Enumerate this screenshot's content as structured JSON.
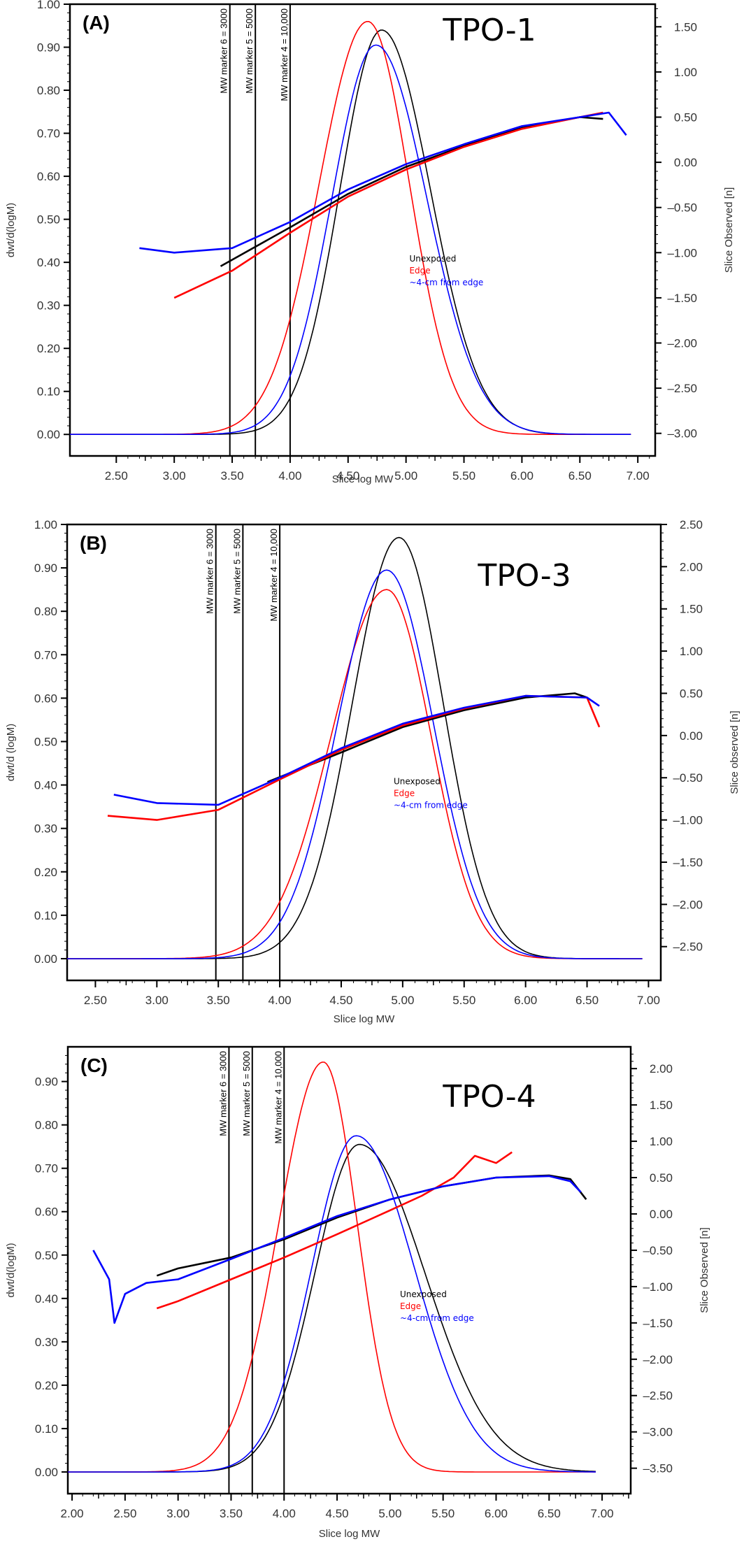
{
  "chart_data": [
    {
      "type": "line",
      "panel_label": "(A)",
      "title": "TPO-1",
      "xlabel": "Slice log MW",
      "ylabel": "dwt/d(logM)",
      "y2label": "Slice Observed [n]",
      "xlim": [
        2.1,
        7.15
      ],
      "ylim": [
        -0.05,
        1.0
      ],
      "y2lim": [
        -3.25,
        1.75
      ],
      "xticks": [
        "2.50",
        "3.00",
        "3.50",
        "4.00",
        "4.50",
        "5.00",
        "5.50",
        "6.00",
        "6.50",
        "7.00"
      ],
      "yticks": [
        "0.00",
        "0.10",
        "0.20",
        "0.30",
        "0.40",
        "0.50",
        "0.60",
        "0.70",
        "0.80",
        "0.90",
        "1.00"
      ],
      "y2ticks": [
        "-3.00",
        "-2.50",
        "-2.00",
        "-1.50",
        "-1.00",
        "-0.50",
        "0.00",
        "0.50",
        "1.00",
        "1.50"
      ],
      "markers": [
        {
          "x": 3.48,
          "label": "MW marker 6 = 3000"
        },
        {
          "x": 3.7,
          "label": "MW marker 5 = 5000"
        },
        {
          "x": 4.0,
          "label": "MW marker 4 = 10,000"
        }
      ],
      "legend": {
        "position": "center-right",
        "entries": [
          "Unexposed",
          "Edge",
          "~4-cm from edge"
        ]
      },
      "series": [
        {
          "name": "Unexposed",
          "color": "#000000",
          "peak_x": 4.79,
          "peak_y": 0.94,
          "sigma_left": 0.36,
          "sigma_right": 0.42,
          "slice_line": [
            [
              3.4,
              -1.15
            ],
            [
              4.0,
              -0.72
            ],
            [
              4.5,
              -0.35
            ],
            [
              5.0,
              -0.05
            ],
            [
              5.5,
              0.18
            ],
            [
              6.0,
              0.38
            ],
            [
              6.5,
              0.5
            ],
            [
              6.7,
              0.48
            ]
          ]
        },
        {
          "name": "Edge",
          "color": "#ff0000",
          "peak_x": 4.67,
          "peak_y": 0.96,
          "sigma_left": 0.42,
          "sigma_right": 0.36,
          "slice_line": [
            [
              3.0,
              -1.5
            ],
            [
              3.5,
              -1.2
            ],
            [
              4.0,
              -0.78
            ],
            [
              4.5,
              -0.38
            ],
            [
              5.0,
              -0.08
            ],
            [
              5.5,
              0.17
            ],
            [
              6.0,
              0.37
            ],
            [
              6.5,
              0.5
            ],
            [
              6.7,
              0.55
            ]
          ]
        },
        {
          "name": "~4-cm from edge",
          "color": "#0000ff",
          "peak_x": 4.74,
          "peak_y": 0.905,
          "sigma_left": 0.38,
          "sigma_right": 0.44,
          "slice_line": [
            [
              2.7,
              -0.95
            ],
            [
              3.0,
              -1.0
            ],
            [
              3.5,
              -0.95
            ],
            [
              4.0,
              -0.66
            ],
            [
              4.5,
              -0.3
            ],
            [
              5.0,
              -0.02
            ],
            [
              5.5,
              0.2
            ],
            [
              6.0,
              0.4
            ],
            [
              6.5,
              0.5
            ],
            [
              6.75,
              0.55
            ],
            [
              6.9,
              0.3
            ]
          ]
        }
      ]
    },
    {
      "type": "line",
      "panel_label": "(B)",
      "title": "TPO-3",
      "xlabel": "Slice log MW",
      "ylabel": "dwt/d (logM)",
      "y2label": "Slice observed [n]",
      "xlim": [
        2.27,
        7.1
      ],
      "ylim": [
        -0.05,
        1.0
      ],
      "y2lim": [
        -2.9,
        2.5
      ],
      "xticks": [
        "2.50",
        "3.00",
        "3.50",
        "4.00",
        "4.50",
        "5.00",
        "5.50",
        "6.00",
        "6.50",
        "7.00"
      ],
      "yticks": [
        "0.00",
        "0.10",
        "0.20",
        "0.30",
        "0.40",
        "0.50",
        "0.60",
        "0.70",
        "0.80",
        "0.90",
        "1.00"
      ],
      "y2ticks": [
        "-2.50",
        "-2.00",
        "-1.50",
        "-1.00",
        "-0.50",
        "0.00",
        "0.50",
        "1.00",
        "1.50",
        "2.00",
        "2.50"
      ],
      "markers": [
        {
          "x": 3.48,
          "label": "MW marker 6 = 3000"
        },
        {
          "x": 3.7,
          "label": "MW marker 5 = 5000"
        },
        {
          "x": 4.0,
          "label": "MW marker 4 = 10,000"
        }
      ],
      "legend": {
        "position": "center-right",
        "entries": [
          "Unexposed",
          "Edge",
          "~4-cm from edge"
        ]
      },
      "series": [
        {
          "name": "Unexposed",
          "color": "#000000",
          "peak_x": 4.97,
          "peak_y": 0.97,
          "sigma_left": 0.38,
          "sigma_right": 0.36,
          "slice_line": [
            [
              3.9,
              -0.55
            ],
            [
              4.5,
              -0.2
            ],
            [
              5.0,
              0.1
            ],
            [
              5.5,
              0.3
            ],
            [
              6.0,
              0.45
            ],
            [
              6.4,
              0.5
            ],
            [
              6.5,
              0.45
            ]
          ]
        },
        {
          "name": "Edge",
          "color": "#ff0000",
          "peak_x": 4.87,
          "peak_y": 0.85,
          "sigma_left": 0.45,
          "sigma_right": 0.36,
          "slice_line": [
            [
              2.6,
              -0.95
            ],
            [
              3.0,
              -1.0
            ],
            [
              3.5,
              -0.88
            ],
            [
              4.0,
              -0.52
            ],
            [
              4.5,
              -0.17
            ],
            [
              5.0,
              0.12
            ],
            [
              5.5,
              0.32
            ],
            [
              6.0,
              0.47
            ],
            [
              6.5,
              0.45
            ],
            [
              6.6,
              0.1
            ]
          ]
        },
        {
          "name": "~4-cm from edge",
          "color": "#0000ff",
          "peak_x": 4.87,
          "peak_y": 0.895,
          "sigma_left": 0.4,
          "sigma_right": 0.38,
          "slice_line": [
            [
              2.65,
              -0.7
            ],
            [
              3.0,
              -0.8
            ],
            [
              3.5,
              -0.82
            ],
            [
              4.0,
              -0.5
            ],
            [
              4.5,
              -0.15
            ],
            [
              5.0,
              0.14
            ],
            [
              5.5,
              0.33
            ],
            [
              6.0,
              0.47
            ],
            [
              6.5,
              0.45
            ],
            [
              6.6,
              0.35
            ]
          ]
        }
      ]
    },
    {
      "type": "line",
      "panel_label": "(C)",
      "title": "TPO-4",
      "xlabel": "Slice log MW",
      "ylabel": "dwt/d(logM)",
      "y2label": "Slice Observed [n]",
      "xlim": [
        1.96,
        7.27
      ],
      "ylim": [
        -0.05,
        0.98
      ],
      "y2lim": [
        -3.85,
        2.3
      ],
      "xticks": [
        "2.00",
        "2.50",
        "3.00",
        "3.50",
        "4.00",
        "4.50",
        "5.00",
        "5.50",
        "6.00",
        "6.50",
        "7.00"
      ],
      "yticks": [
        "0.00",
        "0.10",
        "0.20",
        "0.30",
        "0.40",
        "0.50",
        "0.60",
        "0.70",
        "0.80",
        "0.90"
      ],
      "y2ticks": [
        "-3.50",
        "-3.00",
        "-2.50",
        "-2.00",
        "-1.50",
        "-1.00",
        "-0.50",
        "0.00",
        "0.50",
        "1.00",
        "1.50",
        "2.00"
      ],
      "markers": [
        {
          "x": 3.48,
          "label": "MW marker 6 = 3000"
        },
        {
          "x": 3.7,
          "label": "MW marker 5 = 5000"
        },
        {
          "x": 4.0,
          "label": "MW marker 4 = 10,000"
        }
      ],
      "legend": {
        "position": "center-right",
        "entries": [
          "Unexposed",
          "Edge",
          "~4-cm from edge"
        ]
      },
      "series": [
        {
          "name": "Unexposed",
          "color": "#000000",
          "peak_x": 4.71,
          "peak_y": 0.755,
          "sigma_left": 0.42,
          "sigma_right": 0.62,
          "slice_line": [
            [
              2.8,
              -0.85
            ],
            [
              3.0,
              -0.75
            ],
            [
              3.5,
              -0.6
            ],
            [
              4.0,
              -0.35
            ],
            [
              4.5,
              -0.05
            ],
            [
              5.0,
              0.2
            ],
            [
              5.5,
              0.38
            ],
            [
              6.0,
              0.5
            ],
            [
              6.5,
              0.53
            ],
            [
              6.7,
              0.48
            ],
            [
              6.85,
              0.2
            ]
          ]
        },
        {
          "name": "Edge",
          "color": "#ff0000",
          "peak_x": 4.37,
          "peak_y": 0.945,
          "sigma_left": 0.42,
          "sigma_right": 0.32,
          "slice_line": [
            [
              2.8,
              -1.3
            ],
            [
              3.0,
              -1.2
            ],
            [
              3.5,
              -0.9
            ],
            [
              4.0,
              -0.6
            ],
            [
              4.5,
              -0.28
            ],
            [
              5.0,
              0.05
            ],
            [
              5.3,
              0.25
            ],
            [
              5.6,
              0.5
            ],
            [
              5.8,
              0.8
            ],
            [
              6.0,
              0.7
            ],
            [
              6.15,
              0.85
            ]
          ]
        },
        {
          "name": "~4-cm from edge",
          "color": "#0000ff",
          "peak_x": 4.68,
          "peak_y": 0.775,
          "sigma_left": 0.42,
          "sigma_right": 0.55,
          "slice_line": [
            [
              2.2,
              -0.5
            ],
            [
              2.35,
              -0.9
            ],
            [
              2.4,
              -1.5
            ],
            [
              2.5,
              -1.1
            ],
            [
              2.7,
              -0.95
            ],
            [
              3.0,
              -0.9
            ],
            [
              3.5,
              -0.62
            ],
            [
              4.0,
              -0.33
            ],
            [
              4.5,
              -0.03
            ],
            [
              5.0,
              0.2
            ],
            [
              5.5,
              0.38
            ],
            [
              6.0,
              0.5
            ],
            [
              6.5,
              0.52
            ],
            [
              6.7,
              0.45
            ],
            [
              6.8,
              0.3
            ]
          ]
        }
      ]
    }
  ]
}
